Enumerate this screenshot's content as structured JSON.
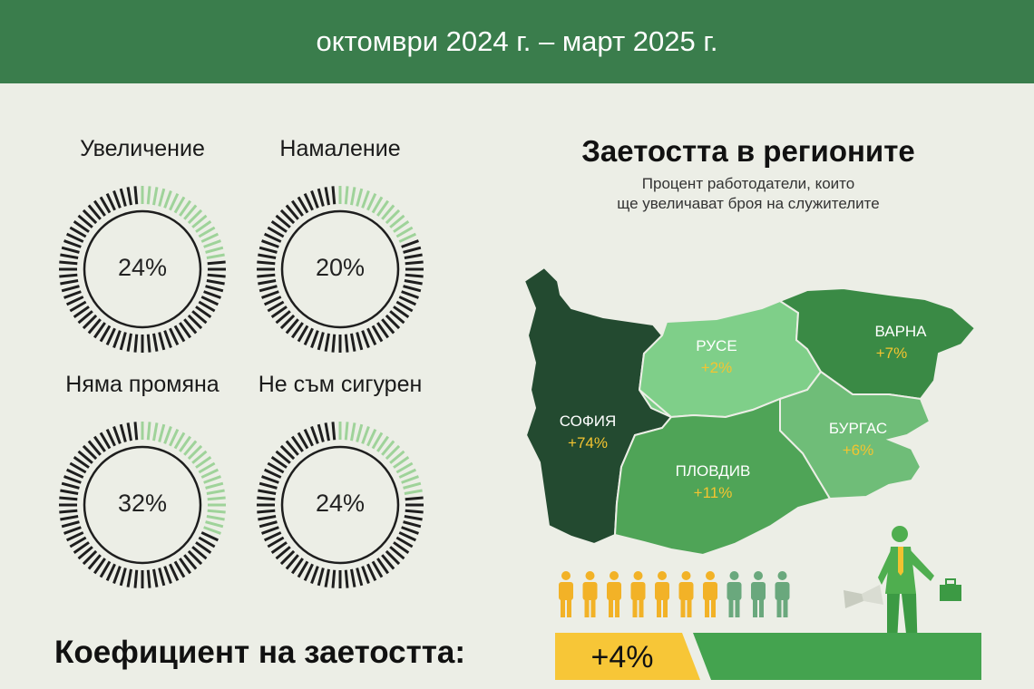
{
  "header": {
    "title": "октомври 2024 г. – март 2025 г."
  },
  "gauges": [
    {
      "label": "Увеличение",
      "value": "24%",
      "fraction": 0.24
    },
    {
      "label": "Намаление",
      "value": "20%",
      "fraction": 0.2
    },
    {
      "label": "Няма промяна",
      "value": "32%",
      "fraction": 0.32
    },
    {
      "label": "Не съм сигурен",
      "value": "24%",
      "fraction": 0.24
    }
  ],
  "map": {
    "title": "Заетостта в регионите",
    "subtitle_line1": "Процент работодатели, които",
    "subtitle_line2": "ще увеличават броя на служителите",
    "regions": [
      {
        "name": "СОФИЯ",
        "value": "+74%"
      },
      {
        "name": "РУСЕ",
        "value": "+2%"
      },
      {
        "name": "ВАРНА",
        "value": "+7%"
      },
      {
        "name": "ПЛОВДИВ",
        "value": "+11%"
      },
      {
        "name": "БУРГАС",
        "value": "+6%"
      }
    ]
  },
  "people": {
    "total": 10,
    "highlighted": 7
  },
  "coefficient": {
    "label": "Коефициент на заетостта:",
    "value": "+4%"
  },
  "colors": {
    "header": "#3a7d4c",
    "gauge_dark": "#1e1e1e",
    "gauge_light": "#9fd39a",
    "sofia": "#234a30",
    "ruse": "#7fcf89",
    "varna": "#3a8a45",
    "plovdiv": "#4fa457",
    "burgas": "#6fbd78",
    "person_yellow": "#f2b227",
    "person_green": "#6aa87d",
    "accent_yellow": "#f7c637"
  }
}
